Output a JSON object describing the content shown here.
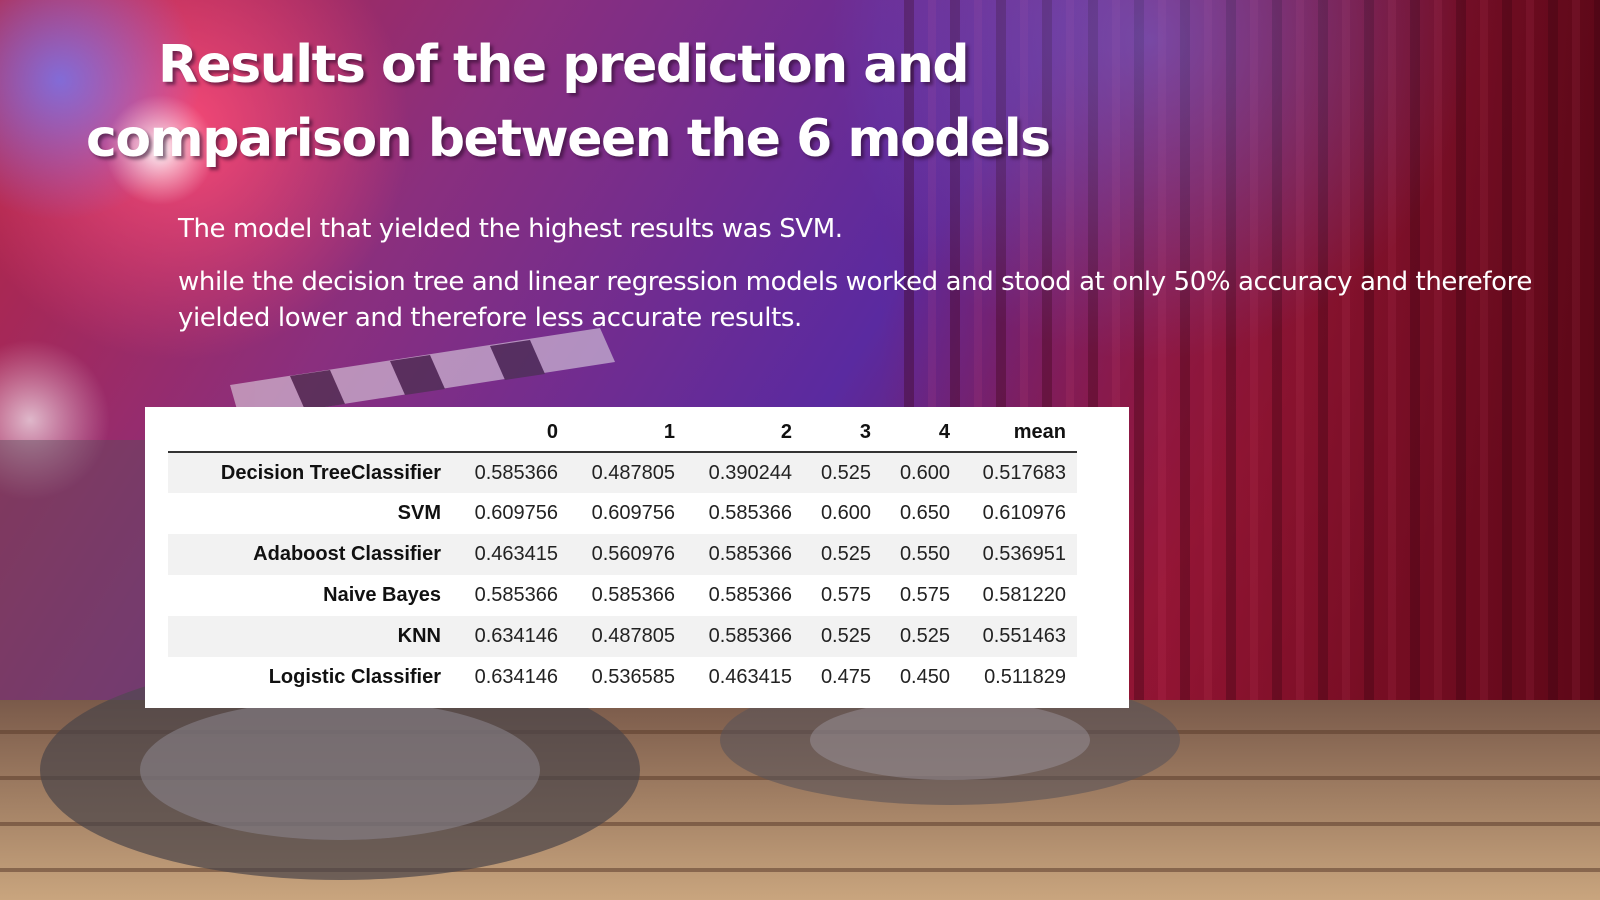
{
  "slide": {
    "title_lines": [
      "Results of the prediction and",
      "comparison between the 6 models"
    ],
    "paragraph_1": "The model that yielded the highest results was SVM.",
    "paragraph_2": " while the decision tree and linear regression models worked and stood at only 50% accuracy and therefore yielded lower and therefore less accurate results."
  },
  "chart_data": {
    "type": "table",
    "columns": [
      "",
      "0",
      "1",
      "2",
      "3",
      "4",
      "mean"
    ],
    "rows": [
      {
        "label": "Decision TreeClassifier",
        "values": [
          "0.585366",
          "0.487805",
          "0.390244",
          "0.525",
          "0.600",
          "0.517683"
        ]
      },
      {
        "label": "SVM",
        "values": [
          "0.609756",
          "0.609756",
          "0.585366",
          "0.600",
          "0.650",
          "0.610976"
        ]
      },
      {
        "label": "Adaboost Classifier",
        "values": [
          "0.463415",
          "0.560976",
          "0.585366",
          "0.525",
          "0.550",
          "0.536951"
        ]
      },
      {
        "label": "Naive Bayes",
        "values": [
          "0.585366",
          "0.585366",
          "0.585366",
          "0.575",
          "0.575",
          "0.581220"
        ]
      },
      {
        "label": "KNN",
        "values": [
          "0.634146",
          "0.487805",
          "0.585366",
          "0.525",
          "0.525",
          "0.551463"
        ]
      },
      {
        "label": "Logistic Classifier",
        "values": [
          "0.634146",
          "0.536585",
          "0.463415",
          "0.475",
          "0.450",
          "0.511829"
        ]
      }
    ]
  }
}
